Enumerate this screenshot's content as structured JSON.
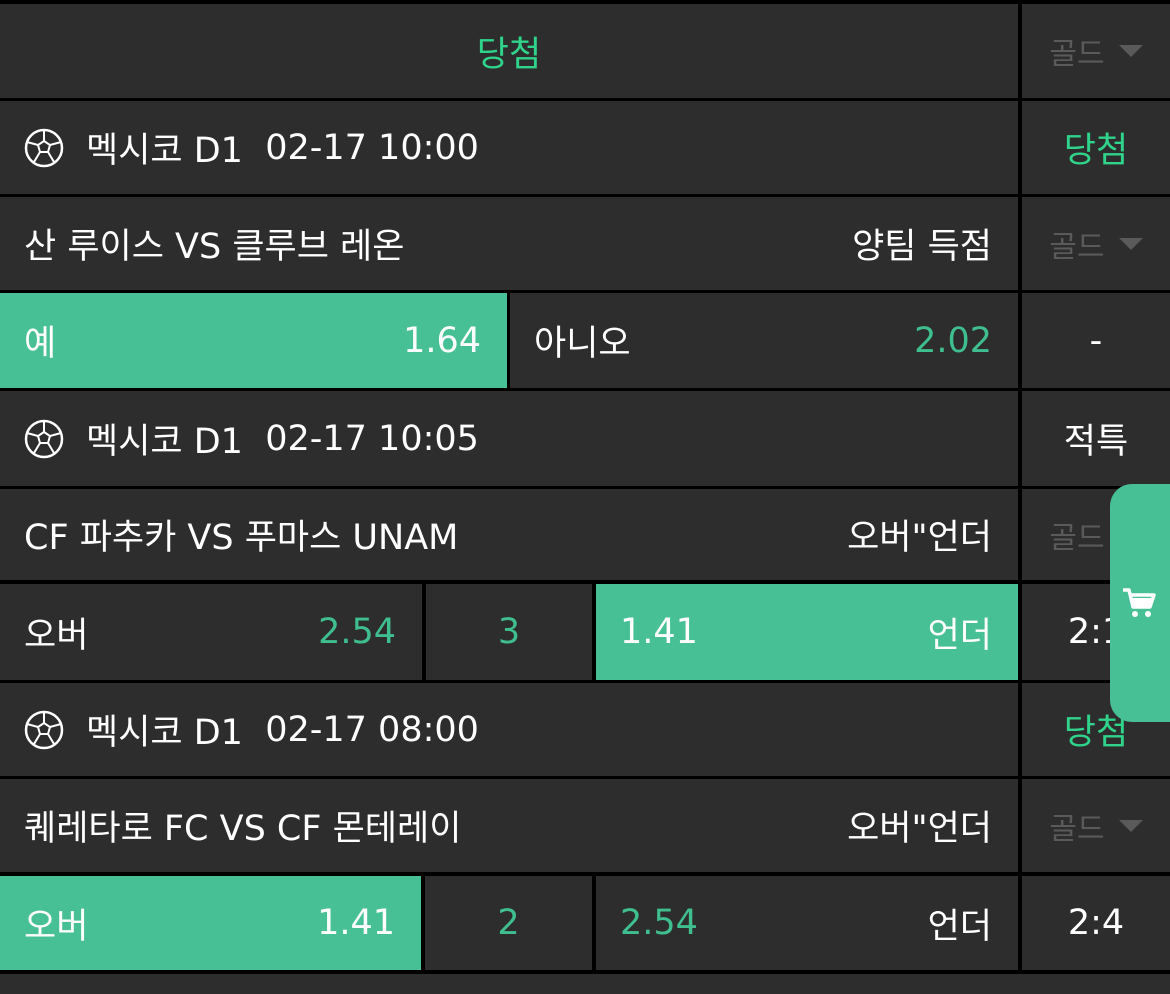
{
  "header": {
    "title": "당첨",
    "filter": "골드"
  },
  "matches": [
    {
      "league": "멕시코 D1",
      "time": "02-17 10:00",
      "status": "당첨",
      "teams": "산 루이스 VS 클루브 레온",
      "market": "양팀 득점",
      "filter": "골드",
      "odds": [
        {
          "label": "예",
          "value": "1.64",
          "selected": true
        },
        {
          "label": "아니오",
          "value": "2.02",
          "selected": false
        }
      ],
      "result": "-"
    },
    {
      "league": "멕시코 D1",
      "time": "02-17 10:05",
      "status": "적특",
      "teams": "CF 파추카 VS 푸마스 UNAM",
      "market": "오버\"언더",
      "filter": "골드",
      "odds": [
        {
          "label": "오버",
          "value": "2.54",
          "selected": false
        },
        {
          "line": "3"
        },
        {
          "label": "언더",
          "value": "1.41",
          "selected": true
        }
      ],
      "result": "2:1"
    },
    {
      "league": "멕시코 D1",
      "time": "02-17 08:00",
      "status": "당첨",
      "teams": "퀘레타로 FC VS CF 몬테레이",
      "market": "오버\"언더",
      "filter": "골드",
      "odds": [
        {
          "label": "오버",
          "value": "1.41",
          "selected": true
        },
        {
          "line": "2"
        },
        {
          "label": "언더",
          "value": "2.54",
          "selected": false
        }
      ],
      "result": "2:4"
    }
  ],
  "colors": {
    "accent": "#48c096",
    "cell": "#2d2d2d",
    "win_text": "#2fd38a"
  },
  "icons": {
    "sport": "soccer-ball-icon",
    "cart": "cart-icon",
    "dropdown": "caret-down-icon"
  }
}
